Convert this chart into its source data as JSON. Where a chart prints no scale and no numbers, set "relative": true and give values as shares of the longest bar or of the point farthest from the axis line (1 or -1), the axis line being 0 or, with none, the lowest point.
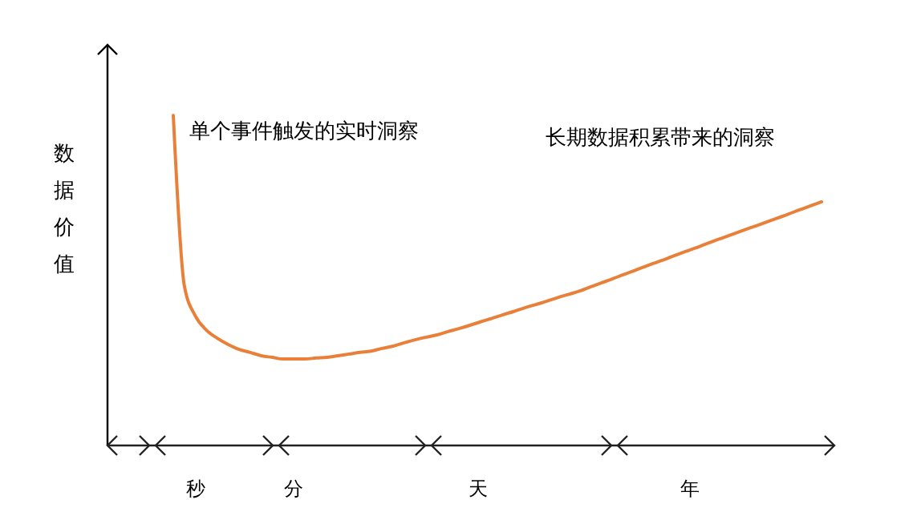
{
  "chart_data": {
    "type": "line",
    "relative": true,
    "ylabel": "数据价值",
    "categories": [
      null,
      null,
      null,
      null,
      null,
      null,
      null,
      null,
      null,
      null,
      null,
      null,
      null,
      null,
      null,
      null,
      null,
      null,
      null,
      null,
      null,
      null,
      null,
      null,
      null,
      null,
      null,
      null,
      null,
      null,
      null,
      null,
      null,
      null,
      null,
      null,
      null,
      null,
      null,
      null,
      null,
      null,
      null,
      null,
      null,
      null,
      null,
      null,
      null,
      null,
      null,
      null,
      null,
      null,
      null,
      null,
      null,
      null,
      null,
      null
    ],
    "series": [
      {
        "color": "#e8803a",
        "values": [
          1.0,
          0.485,
          0.393,
          0.35,
          0.325,
          0.306,
          0.291,
          0.282,
          0.272,
          0.267,
          0.262,
          0.262,
          0.262,
          0.265,
          0.267,
          0.272,
          0.277,
          0.282,
          0.286,
          0.294,
          0.301,
          0.311,
          0.32,
          0.328,
          0.335,
          0.345,
          0.354,
          0.364,
          0.375,
          0.385,
          0.396,
          0.406,
          0.417,
          0.427,
          0.437,
          0.448,
          0.458,
          0.468,
          0.481,
          0.493,
          0.505,
          0.518,
          0.53,
          0.543,
          0.555,
          0.567,
          0.58,
          0.592,
          0.604,
          0.617,
          0.629,
          0.641,
          0.653,
          0.665,
          0.677,
          0.689,
          0.701,
          0.714,
          0.726,
          0.738
        ]
      }
    ],
    "annotations": [
      "单个事件触发的实时洞察",
      "长期数据积累带来的洞察",
      "秒",
      "分",
      "天",
      "年"
    ],
    "marker": "none",
    "line_style": "solid"
  }
}
